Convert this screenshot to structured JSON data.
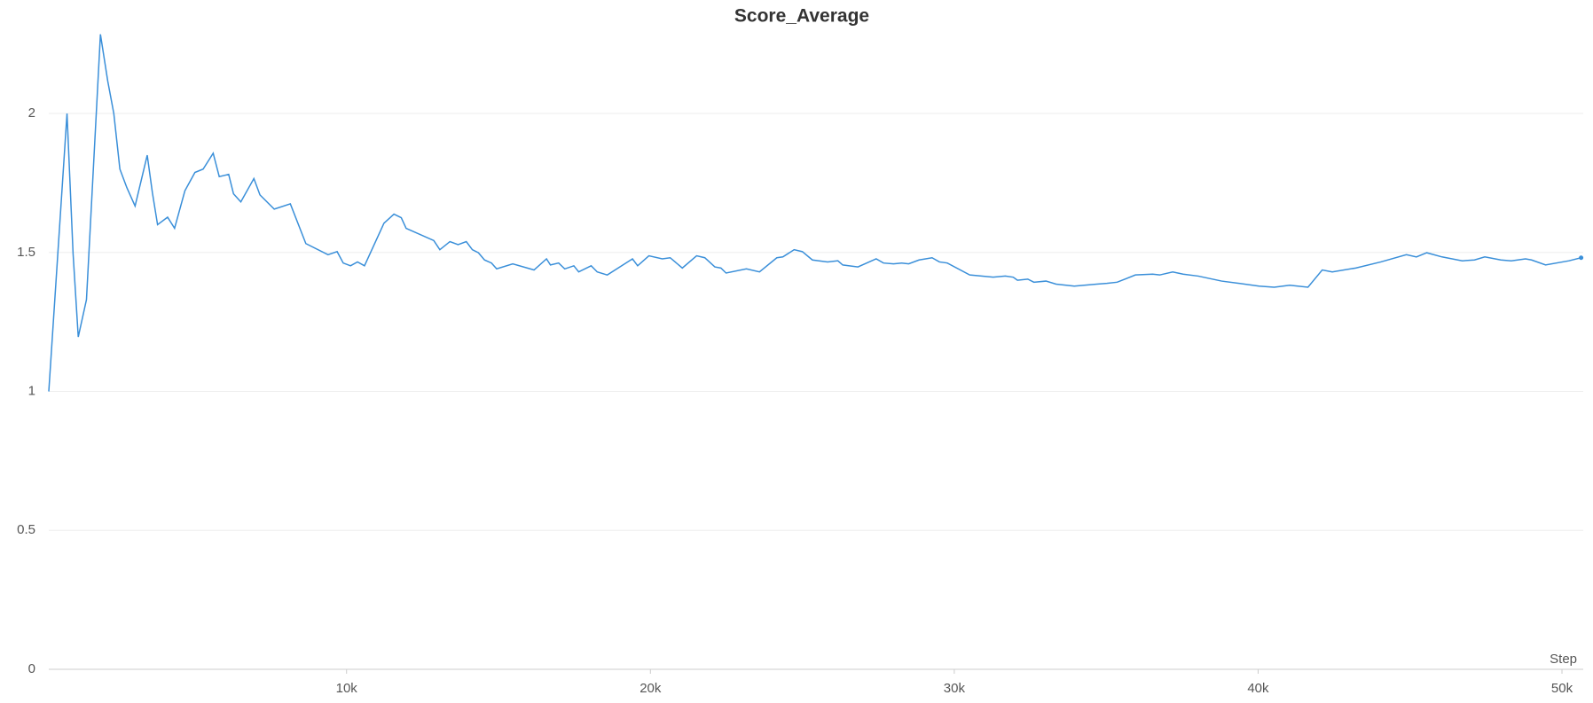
{
  "chart_data": {
    "type": "line",
    "title": "Score_Average",
    "x_label": "Step",
    "x": [
      200,
      800,
      1000,
      1170,
      1440,
      1900,
      2140,
      2340,
      2540,
      2770,
      3040,
      3440,
      3610,
      3780,
      4110,
      4340,
      4680,
      5010,
      5280,
      5610,
      5810,
      6120,
      6280,
      6520,
      6950,
      7150,
      7620,
      8150,
      8660,
      9390,
      9690,
      9890,
      10130,
      10360,
      10590,
      11230,
      11560,
      11800,
      11960,
      12870,
      13070,
      13400,
      13670,
      13940,
      14140,
      14340,
      14540,
      14770,
      14940,
      15470,
      16170,
      16580,
      16710,
      16980,
      17180,
      17480,
      17640,
      18050,
      18250,
      18580,
      19050,
      19410,
      19580,
      19950,
      20390,
      20650,
      21050,
      21520,
      21790,
      22120,
      22320,
      22490,
      23160,
      23590,
      24160,
      24360,
      24730,
      25000,
      25330,
      25830,
      26170,
      26330,
      26830,
      27430,
      27670,
      28000,
      28270,
      28500,
      28840,
      29270,
      29510,
      29770,
      30510,
      31280,
      31680,
      31940,
      32080,
      32420,
      32620,
      33020,
      33350,
      33950,
      34690,
      35020,
      35360,
      35960,
      36530,
      36760,
      37190,
      37530,
      38030,
      38800,
      39370,
      40030,
      40530,
      41040,
      41640,
      42110,
      42440,
      43210,
      44040,
      44880,
      45210,
      45550,
      46050,
      46720,
      47120,
      47460,
      47990,
      48330,
      48800,
      49000,
      49460,
      50230,
      50630
    ],
    "series": [
      {
        "name": "Score_Average",
        "color": "#3a8fd9",
        "values": [
          1.0,
          2.0,
          1.495,
          1.196,
          1.33,
          2.285,
          2.117,
          2.0,
          1.8,
          1.733,
          1.667,
          1.85,
          1.715,
          1.6,
          1.627,
          1.587,
          1.722,
          1.788,
          1.8,
          1.857,
          1.773,
          1.781,
          1.711,
          1.682,
          1.766,
          1.707,
          1.656,
          1.675,
          1.532,
          1.492,
          1.503,
          1.462,
          1.452,
          1.466,
          1.452,
          1.605,
          1.638,
          1.625,
          1.587,
          1.543,
          1.51,
          1.539,
          1.528,
          1.539,
          1.51,
          1.499,
          1.473,
          1.462,
          1.441,
          1.459,
          1.437,
          1.477,
          1.455,
          1.462,
          1.441,
          1.452,
          1.43,
          1.452,
          1.43,
          1.419,
          1.452,
          1.477,
          1.452,
          1.488,
          1.477,
          1.481,
          1.444,
          1.488,
          1.481,
          1.448,
          1.444,
          1.426,
          1.441,
          1.43,
          1.481,
          1.484,
          1.51,
          1.503,
          1.473,
          1.466,
          1.47,
          1.455,
          1.448,
          1.477,
          1.462,
          1.459,
          1.462,
          1.459,
          1.473,
          1.481,
          1.466,
          1.462,
          1.419,
          1.411,
          1.415,
          1.411,
          1.4,
          1.404,
          1.393,
          1.397,
          1.386,
          1.379,
          1.386,
          1.389,
          1.393,
          1.419,
          1.422,
          1.419,
          1.43,
          1.422,
          1.415,
          1.397,
          1.389,
          1.379,
          1.375,
          1.382,
          1.375,
          1.437,
          1.43,
          1.444,
          1.466,
          1.492,
          1.484,
          1.499,
          1.484,
          1.47,
          1.473,
          1.484,
          1.473,
          1.47,
          1.477,
          1.473,
          1.455,
          1.47,
          1.481
        ]
      }
    ],
    "xlim": [
      200,
      50700
    ],
    "ylim": [
      0,
      2.3
    ],
    "xticks": [
      {
        "value": 10000,
        "label": "10k"
      },
      {
        "value": 20000,
        "label": "20k"
      },
      {
        "value": 30000,
        "label": "30k"
      },
      {
        "value": 40000,
        "label": "40k"
      },
      {
        "value": 50000,
        "label": "50k"
      }
    ],
    "yticks": [
      0,
      0.5,
      1,
      1.5,
      2
    ],
    "grid": true
  }
}
